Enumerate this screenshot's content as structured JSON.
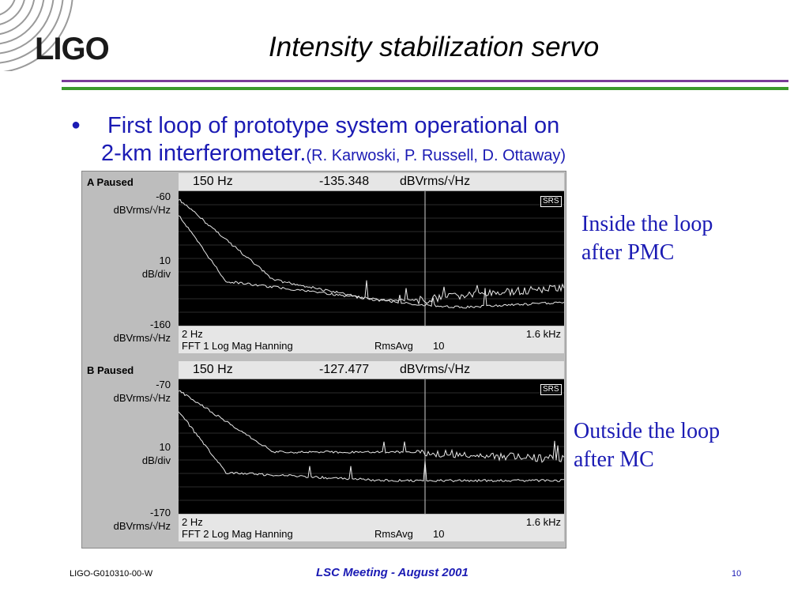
{
  "header": {
    "logo": "LIGO",
    "title": "Intensity stabilization servo"
  },
  "bullet": {
    "line1": "First loop of prototype system operational on",
    "line2": "2-km interferometer.",
    "credits": "(R. Karwoski, P. Russell, D. Ottaway)"
  },
  "notes": {
    "inside_line1": "Inside the loop",
    "inside_line2": "after PMC",
    "outside_line1": "Outside the loop",
    "outside_line2": "after MC"
  },
  "panelA": {
    "status": "A Paused",
    "top_value": "-60",
    "top_unit": "dBVrms/√Hz",
    "scale_value": "10",
    "scale_unit": "dB/div",
    "bottom_value": "-160",
    "bottom_unit": "dBVrms/√Hz",
    "marker_freq": "150 Hz",
    "marker_value": "-135.348",
    "marker_unit": "dBVrms/√Hz",
    "start_freq": "2 Hz",
    "stop_freq": "1.6 kHz",
    "measurement": "FFT 1 Log Mag Hanning",
    "avg_label": "RmsAvg",
    "avg_count": "10",
    "badge": "SRS"
  },
  "panelB": {
    "status": "B Paused",
    "top_value": "-70",
    "top_unit": "dBVrms/√Hz",
    "scale_value": "10",
    "scale_unit": "dB/div",
    "bottom_value": "-170",
    "bottom_unit": "dBVrms/√Hz",
    "marker_freq": "150 Hz",
    "marker_value": "-127.477",
    "marker_unit": "dBVrms/√Hz",
    "start_freq": "2 Hz",
    "stop_freq": "1.6 kHz",
    "measurement": "FFT 2 Log Mag Hanning",
    "avg_label": "RmsAvg",
    "avg_count": "10",
    "badge": "SRS"
  },
  "footer": {
    "doc_id": "LIGO-G010310-00-W",
    "meeting": "LSC Meeting - August 2001",
    "page": "10"
  },
  "colors": {
    "accent_text": "#1b1bb4",
    "rule_purple": "#7a3c98",
    "rule_green": "#3c9a2c"
  }
}
